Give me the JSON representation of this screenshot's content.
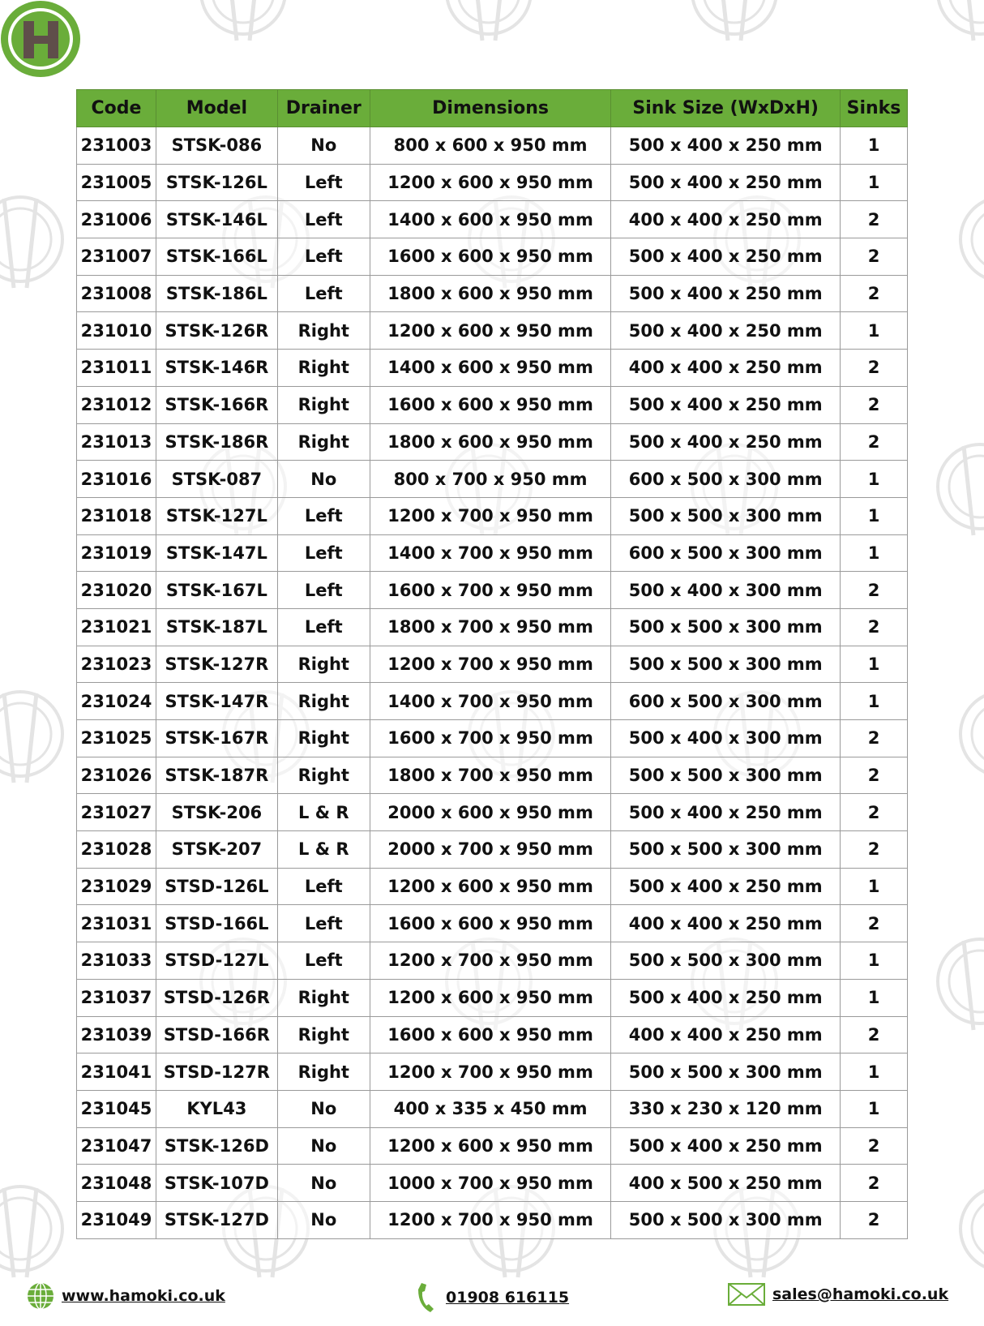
{
  "brand": {
    "logo_letter": "H",
    "accent": "#6aad3a",
    "logo_dark": "#5f4e4a"
  },
  "table": {
    "headers": [
      "Code",
      "Model",
      "Drainer",
      "Dimensions",
      "Sink Size (WxDxH)",
      "Sinks"
    ],
    "rows": [
      [
        "231003",
        "STSK-086",
        "No",
        "800 x 600 x 950 mm",
        "500 x 400 x 250 mm",
        "1"
      ],
      [
        "231005",
        "STSK-126L",
        "Left",
        "1200 x 600 x 950 mm",
        "500 x 400 x 250 mm",
        "1"
      ],
      [
        "231006",
        "STSK-146L",
        "Left",
        "1400 x 600 x 950 mm",
        "400 x 400 x 250 mm",
        "2"
      ],
      [
        "231007",
        "STSK-166L",
        "Left",
        "1600 x 600 x 950 mm",
        "500 x 400 x 250 mm",
        "2"
      ],
      [
        "231008",
        "STSK-186L",
        "Left",
        "1800 x 600 x 950 mm",
        "500 x 400 x 250 mm",
        "2"
      ],
      [
        "231010",
        "STSK-126R",
        "Right",
        "1200 x 600 x 950 mm",
        "500 x 400 x 250 mm",
        "1"
      ],
      [
        "231011",
        "STSK-146R",
        "Right",
        "1400 x 600 x 950 mm",
        "400 x 400 x 250 mm",
        "2"
      ],
      [
        "231012",
        "STSK-166R",
        "Right",
        "1600 x 600 x 950 mm",
        "500 x 400 x 250 mm",
        "2"
      ],
      [
        "231013",
        "STSK-186R",
        "Right",
        "1800 x 600 x 950 mm",
        "500 x 400 x 250 mm",
        "2"
      ],
      [
        "231016",
        "STSK-087",
        "No",
        "800 x 700 x 950 mm",
        "600 x 500 x 300 mm",
        "1"
      ],
      [
        "231018",
        "STSK-127L",
        "Left",
        "1200 x 700 x 950 mm",
        "500 x 500 x 300 mm",
        "1"
      ],
      [
        "231019",
        "STSK-147L",
        "Left",
        "1400 x 700 x 950 mm",
        "600 x 500 x 300 mm",
        "1"
      ],
      [
        "231020",
        "STSK-167L",
        "Left",
        "1600 x 700 x 950 mm",
        "500 x 400 x 300 mm",
        "2"
      ],
      [
        "231021",
        "STSK-187L",
        "Left",
        "1800 x 700 x 950 mm",
        "500 x 500 x 300 mm",
        "2"
      ],
      [
        "231023",
        "STSK-127R",
        "Right",
        "1200 x 700 x 950 mm",
        "500 x 500 x 300 mm",
        "1"
      ],
      [
        "231024",
        "STSK-147R",
        "Right",
        "1400 x 700 x 950 mm",
        "600 x 500 x 300 mm",
        "1"
      ],
      [
        "231025",
        "STSK-167R",
        "Right",
        "1600 x 700 x 950 mm",
        "500 x 400 x 300 mm",
        "2"
      ],
      [
        "231026",
        "STSK-187R",
        "Right",
        "1800 x 700 x 950 mm",
        "500 x 500 x 300 mm",
        "2"
      ],
      [
        "231027",
        "STSK-206",
        "L & R",
        "2000 x 600 x 950 mm",
        "500 x 400 x 250 mm",
        "2"
      ],
      [
        "231028",
        "STSK-207",
        "L & R",
        "2000 x 700 x 950 mm",
        "500 x 500 x 300 mm",
        "2"
      ],
      [
        "231029",
        "STSD-126L",
        "Left",
        "1200 x 600 x 950 mm",
        "500 x 400 x 250 mm",
        "1"
      ],
      [
        "231031",
        "STSD-166L",
        "Left",
        "1600 x 600 x 950 mm",
        "400 x 400 x 250 mm",
        "2"
      ],
      [
        "231033",
        "STSD-127L",
        "Left",
        "1200 x 700 x 950 mm",
        "500 x 500 x 300 mm",
        "1"
      ],
      [
        "231037",
        "STSD-126R",
        "Right",
        "1200 x 600 x 950 mm",
        "500 x 400 x 250 mm",
        "1"
      ],
      [
        "231039",
        "STSD-166R",
        "Right",
        "1600 x 600 x 950 mm",
        "400 x 400 x 250 mm",
        "2"
      ],
      [
        "231041",
        "STSD-127R",
        "Right",
        "1200 x 700 x 950 mm",
        "500 x 500 x 300 mm",
        "1"
      ],
      [
        "231045",
        "KYL43",
        "No",
        "400 x 335 x 450 mm",
        "330 x 230 x 120 mm",
        "1"
      ],
      [
        "231047",
        "STSK-126D",
        "No",
        "1200 x 600 x 950 mm",
        "500 x 400 x 250 mm",
        "2"
      ],
      [
        "231048",
        "STSK-107D",
        "No",
        "1000 x 700 x 950 mm",
        "400 x 500 x 250 mm",
        "2"
      ],
      [
        "231049",
        "STSK-127D",
        "No",
        "1200 x 700 x 950 mm",
        "500 x 500 x 300 mm",
        "2"
      ]
    ]
  },
  "footer": {
    "website": "www.hamoki.co.uk",
    "website_icon": "globe-icon",
    "phone": "01908 616115",
    "phone_icon": "phone-icon",
    "email": "sales@hamoki.co.uk",
    "email_icon": "envelope-icon"
  }
}
